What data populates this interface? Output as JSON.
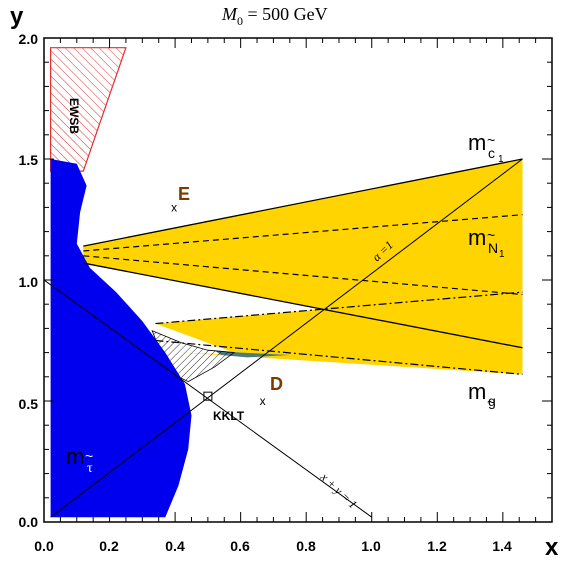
{
  "chart_data": {
    "type": "line",
    "title": {
      "var": "M",
      "sub": "0",
      "rest": " = 500 GeV"
    },
    "xlabel": "x",
    "ylabel": "y",
    "xlim": [
      0.0,
      1.55
    ],
    "ylim": [
      0.0,
      2.0
    ],
    "xticks": [
      "0.0",
      "0.2",
      "0.4",
      "0.6",
      "0.8",
      "1.0",
      "1.2",
      "1.4"
    ],
    "yticks": [
      "0.0",
      "0.5",
      "1.0",
      "1.5",
      "2.0"
    ],
    "grid": false,
    "colors": {
      "tau_region": "#0000ee",
      "yellow_band": "#ffd400",
      "ewsb_hatch": "#e03030",
      "point_label": "#7a3a00",
      "teal_sliver": "#4a7a80"
    },
    "regions": [
      {
        "label": "EWSB",
        "points": [
          [
            0.02,
            1.96
          ],
          [
            0.25,
            1.96
          ],
          [
            0.12,
            1.45
          ],
          [
            0.02,
            1.45
          ]
        ]
      },
      {
        "label": "m_tau",
        "points": [
          [
            0.02,
            1.5
          ],
          [
            0.1,
            1.48
          ],
          [
            0.13,
            1.39
          ],
          [
            0.11,
            1.28
          ],
          [
            0.1,
            1.15
          ],
          [
            0.14,
            1.05
          ],
          [
            0.22,
            0.95
          ],
          [
            0.3,
            0.83
          ],
          [
            0.37,
            0.7
          ],
          [
            0.43,
            0.57
          ],
          [
            0.45,
            0.44
          ],
          [
            0.44,
            0.3
          ],
          [
            0.41,
            0.15
          ],
          [
            0.37,
            0.02
          ],
          [
            0.02,
            0.02
          ]
        ]
      },
      {
        "label": "hatched_gap",
        "points": [
          [
            0.33,
            0.79
          ],
          [
            0.42,
            0.74
          ],
          [
            0.5,
            0.71
          ],
          [
            0.58,
            0.7
          ],
          [
            0.52,
            0.64
          ],
          [
            0.44,
            0.58
          ],
          [
            0.38,
            0.62
          ]
        ]
      },
      {
        "label": "teal_sliver",
        "points": [
          [
            0.52,
            0.71
          ],
          [
            0.6,
            0.7
          ],
          [
            0.75,
            0.69
          ],
          [
            0.62,
            0.68
          ],
          [
            0.54,
            0.69
          ]
        ]
      },
      {
        "label": "yellow_upper",
        "points": [
          [
            0.12,
            1.14
          ],
          [
            1.46,
            1.5
          ],
          [
            1.46,
            0.72
          ],
          [
            0.12,
            1.07
          ]
        ]
      },
      {
        "label": "yellow_lower",
        "points": [
          [
            0.34,
            0.82
          ],
          [
            1.46,
            0.95
          ],
          [
            1.46,
            0.61
          ],
          [
            0.42,
            0.7
          ],
          [
            0.6,
            0.69
          ],
          [
            0.42,
            0.78
          ]
        ]
      }
    ],
    "series": [
      {
        "name": "m_c1",
        "style": "solid",
        "points": [
          [
            0.12,
            1.14
          ],
          [
            1.46,
            1.5
          ]
        ]
      },
      {
        "name": "m_c1_lower",
        "style": "solid",
        "points": [
          [
            0.12,
            1.07
          ],
          [
            1.46,
            0.72
          ]
        ]
      },
      {
        "name": "m_N1_upper",
        "style": "dashed",
        "points": [
          [
            0.12,
            1.12
          ],
          [
            1.46,
            1.27
          ]
        ]
      },
      {
        "name": "m_N1_lower",
        "style": "dashed",
        "points": [
          [
            0.12,
            1.1
          ],
          [
            1.46,
            0.94
          ]
        ]
      },
      {
        "name": "m_g_upper",
        "style": "dashdot",
        "points": [
          [
            0.34,
            0.82
          ],
          [
            1.46,
            0.95
          ]
        ]
      },
      {
        "name": "m_g_lower",
        "style": "dashdot",
        "points": [
          [
            0.34,
            0.75
          ],
          [
            1.46,
            0.61
          ]
        ]
      },
      {
        "name": "alpha_line",
        "style": "solid",
        "points": [
          [
            0.02,
            0.02
          ],
          [
            1.46,
            1.5
          ]
        ]
      },
      {
        "name": "xy_line",
        "style": "solid",
        "points": [
          [
            0.0,
            1.0
          ],
          [
            1.0,
            0.02
          ]
        ]
      }
    ],
    "annotations": [
      {
        "id": "mc1",
        "text": "m",
        "sub": "c",
        "subsub": "1",
        "tilde": true,
        "at": [
          1.31,
          1.56
        ]
      },
      {
        "id": "mN1",
        "text": "m",
        "sub": "N",
        "subsub": "1",
        "tilde": true,
        "at": [
          1.31,
          1.16
        ]
      },
      {
        "id": "mg",
        "text": "m",
        "sub": "g",
        "tilde": true,
        "at": [
          1.31,
          0.52
        ]
      },
      {
        "id": "mtau",
        "text": "m",
        "sub": "τ",
        "tilde": true,
        "at": [
          0.07,
          0.28
        ]
      },
      {
        "id": "alpha",
        "text": "α =1",
        "at": [
          1.01,
          1.08
        ]
      },
      {
        "id": "xy",
        "text": "x + y = 1",
        "at": [
          0.88,
          0.15
        ]
      },
      {
        "id": "kklt",
        "text": "KKLT",
        "at": [
          0.52,
          0.43
        ]
      },
      {
        "id": "ewsb",
        "text": "EWSB",
        "at": [
          0.11,
          1.72
        ]
      }
    ],
    "points": [
      {
        "label": "E",
        "x": 0.4,
        "y": 1.3
      },
      {
        "label": "D",
        "x": 0.67,
        "y": 0.5
      },
      {
        "label": "KKLT_marker",
        "x": 0.5,
        "y": 0.52
      }
    ]
  }
}
